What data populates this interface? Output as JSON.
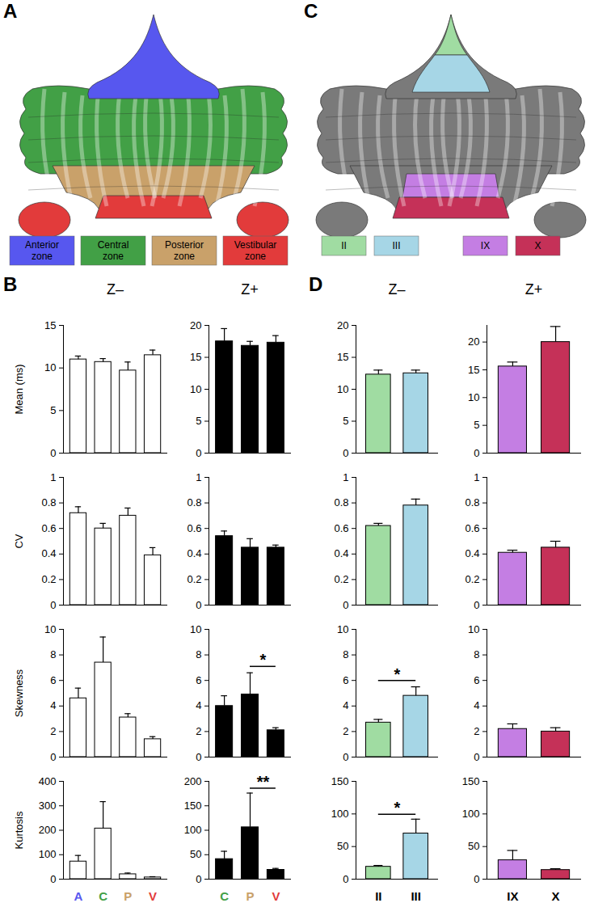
{
  "panels": [
    {
      "label": "A",
      "legend": [
        {
          "name": "Anterior zone",
          "color": "#5757ef"
        },
        {
          "name": "Central zone",
          "color": "#42a046"
        },
        {
          "name": "Posterior zone",
          "color": "#c9a16a"
        },
        {
          "name": "Vestibular zone",
          "color": "#e23b3b"
        }
      ]
    },
    {
      "label": "C",
      "legend": [
        {
          "name": "II",
          "color": "#a0dca2"
        },
        {
          "name": "III",
          "color": "#a6d6e6"
        },
        {
          "name": "IX",
          "color": "#c47ee3"
        },
        {
          "name": "X",
          "color": "#c53158"
        }
      ]
    },
    {
      "label": "B"
    },
    {
      "label": "D"
    }
  ],
  "chart_data": [
    {
      "type": "bar",
      "panel": "B",
      "title": "Z–",
      "y_label": "Mean (ms)",
      "categories": [
        "A",
        "C",
        "P",
        "V"
      ],
      "values": [
        11,
        10.7,
        9.7,
        11.5
      ],
      "errors": [
        0.4,
        0.4,
        1.0,
        0.6
      ],
      "color": "#ffffff",
      "ylim": [
        0,
        15
      ],
      "yticks": [
        0,
        5,
        10,
        15
      ],
      "tick_labels": "y"
    },
    {
      "type": "bar",
      "panel": "B",
      "y_label": "CV",
      "categories": [
        "A",
        "C",
        "P",
        "V"
      ],
      "values": [
        0.72,
        0.6,
        0.7,
        0.39
      ],
      "errors": [
        0.05,
        0.04,
        0.06,
        0.06
      ],
      "color": "#ffffff",
      "ylim": [
        0,
        1
      ],
      "yticks": [
        0,
        0.2,
        0.4,
        0.6,
        0.8,
        1
      ],
      "tick_labels": "y"
    },
    {
      "type": "bar",
      "panel": "B",
      "y_label": "Skewness",
      "categories": [
        "A",
        "C",
        "P",
        "V"
      ],
      "values": [
        4.6,
        7.4,
        3.1,
        1.4
      ],
      "errors": [
        0.8,
        2.0,
        0.3,
        0.2
      ],
      "color": "#ffffff",
      "ylim": [
        0,
        10
      ],
      "yticks": [
        0,
        2,
        4,
        6,
        8,
        10
      ],
      "tick_labels": "y"
    },
    {
      "type": "bar",
      "panel": "B",
      "y_label": "Kurtosis",
      "categories": [
        "A",
        "C",
        "P",
        "V"
      ],
      "values": [
        72,
        207,
        20,
        7
      ],
      "errors": [
        25,
        110,
        5,
        3
      ],
      "color": "#ffffff",
      "ylim": [
        0,
        400
      ],
      "yticks": [
        0,
        100,
        200,
        300,
        400
      ]
    },
    {
      "type": "bar",
      "panel": "B",
      "title": "Z+",
      "categories": [
        "C",
        "P",
        "V"
      ],
      "values": [
        17.5,
        16.8,
        17.3
      ],
      "errors": [
        2.0,
        0.7,
        1.1
      ],
      "color": "#000000",
      "ylim": [
        0,
        20
      ],
      "yticks": [
        0,
        5,
        10,
        15,
        20
      ],
      "tick_labels": "y"
    },
    {
      "type": "bar",
      "panel": "B",
      "categories": [
        "C",
        "P",
        "V"
      ],
      "values": [
        0.54,
        0.45,
        0.45
      ],
      "errors": [
        0.04,
        0.07,
        0.02
      ],
      "color": "#000000",
      "ylim": [
        0,
        1
      ],
      "yticks": [
        0,
        0.2,
        0.4,
        0.6,
        0.8,
        1
      ],
      "tick_labels": "y"
    },
    {
      "type": "bar",
      "panel": "B",
      "categories": [
        "C",
        "P",
        "V"
      ],
      "values": [
        4.0,
        4.9,
        2.1
      ],
      "errors": [
        0.8,
        1.7,
        0.2
      ],
      "color": "#000000",
      "ylim": [
        0,
        10
      ],
      "yticks": [
        0,
        2,
        4,
        6,
        8,
        10
      ],
      "tick_labels": "y",
      "significance": [
        {
          "from": "P",
          "to": "V",
          "label": "*"
        }
      ]
    },
    {
      "type": "bar",
      "panel": "B",
      "categories": [
        "C",
        "P",
        "V"
      ],
      "values": [
        41,
        106,
        19
      ],
      "errors": [
        16,
        70,
        3
      ],
      "color": "#000000",
      "ylim": [
        0,
        200
      ],
      "yticks": [
        0,
        50,
        100,
        150,
        200
      ],
      "significance": [
        {
          "from": "P",
          "to": "V",
          "label": "**"
        }
      ]
    },
    {
      "type": "bar",
      "panel": "D",
      "title": "Z–",
      "categories": [
        "II",
        "III"
      ],
      "values": [
        12.3,
        12.5
      ],
      "errors": [
        0.7,
        0.5
      ],
      "colors": [
        "#a0dca2",
        "#a6d6e6"
      ],
      "ylim": [
        0,
        20
      ],
      "yticks": [
        0,
        5,
        10,
        15,
        20
      ],
      "tick_labels": "y"
    },
    {
      "type": "bar",
      "panel": "D",
      "categories": [
        "II",
        "III"
      ],
      "values": [
        0.62,
        0.78
      ],
      "errors": [
        0.02,
        0.05
      ],
      "colors": [
        "#a0dca2",
        "#a6d6e6"
      ],
      "ylim": [
        0,
        1
      ],
      "yticks": [
        0,
        0.2,
        0.4,
        0.6,
        0.8,
        1
      ],
      "tick_labels": "y"
    },
    {
      "type": "bar",
      "panel": "D",
      "categories": [
        "II",
        "III"
      ],
      "values": [
        2.7,
        4.8
      ],
      "errors": [
        0.25,
        0.7
      ],
      "colors": [
        "#a0dca2",
        "#a6d6e6"
      ],
      "ylim": [
        0,
        10
      ],
      "yticks": [
        0,
        2,
        4,
        6,
        8,
        10
      ],
      "tick_labels": "y",
      "significance": [
        {
          "from": "II",
          "to": "III",
          "label": "*"
        }
      ]
    },
    {
      "type": "bar",
      "panel": "D",
      "categories": [
        "II",
        "III"
      ],
      "values": [
        19,
        70
      ],
      "errors": [
        2,
        22
      ],
      "colors": [
        "#a0dca2",
        "#a6d6e6"
      ],
      "ylim": [
        0,
        150
      ],
      "yticks": [
        0,
        50,
        100,
        150
      ],
      "significance": [
        {
          "from": "II",
          "to": "III",
          "label": "*"
        }
      ]
    },
    {
      "type": "bar",
      "panel": "D",
      "title": "Z+",
      "categories": [
        "IX",
        "X"
      ],
      "values": [
        15.6,
        20
      ],
      "errors": [
        0.8,
        2.8
      ],
      "colors": [
        "#c47ee3",
        "#c53158"
      ],
      "ylim": [
        0,
        23
      ],
      "yticks": [
        0,
        5,
        10,
        15,
        20
      ],
      "tick_labels": "y"
    },
    {
      "type": "bar",
      "panel": "D",
      "categories": [
        "IX",
        "X"
      ],
      "values": [
        0.41,
        0.45
      ],
      "errors": [
        0.02,
        0.05
      ],
      "colors": [
        "#c47ee3",
        "#c53158"
      ],
      "ylim": [
        0,
        1
      ],
      "yticks": [
        0,
        0.2,
        0.4,
        0.6,
        0.8,
        1
      ],
      "tick_labels": "y"
    },
    {
      "type": "bar",
      "panel": "D",
      "categories": [
        "IX",
        "X"
      ],
      "values": [
        2.2,
        2.0
      ],
      "errors": [
        0.4,
        0.3
      ],
      "colors": [
        "#c47ee3",
        "#c53158"
      ],
      "ylim": [
        0,
        10
      ],
      "yticks": [
        0,
        2,
        4,
        6,
        8,
        10
      ],
      "tick_labels": "y"
    },
    {
      "type": "bar",
      "panel": "D",
      "categories": [
        "IX",
        "X"
      ],
      "values": [
        29,
        14
      ],
      "errors": [
        15,
        2
      ],
      "colors": [
        "#c47ee3",
        "#c53158"
      ],
      "ylim": [
        0,
        150
      ],
      "yticks": [
        0,
        50,
        100,
        150
      ]
    }
  ]
}
